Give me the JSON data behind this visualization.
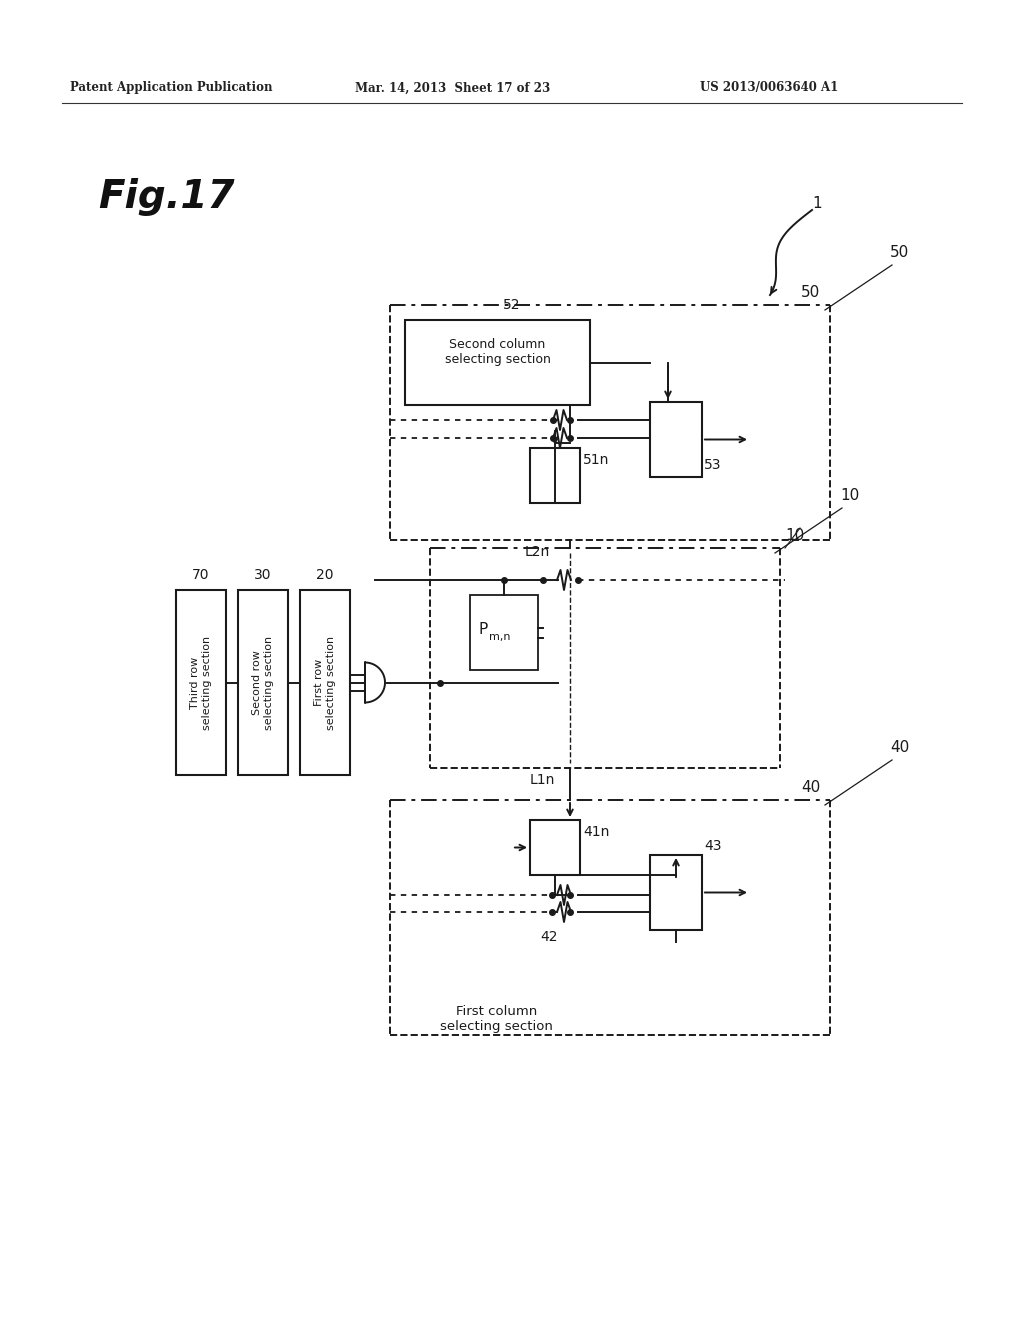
{
  "bg_color": "#ffffff",
  "line_color": "#1a1a1a",
  "title_text": "Fig.17",
  "header_left": "Patent Application Publication",
  "header_mid": "Mar. 14, 2013  Sheet 17 of 23",
  "header_right": "US 2013/0063640 A1",
  "label_1": "1",
  "label_10": "10",
  "label_20": "20",
  "label_30": "30",
  "label_40": "40",
  "label_41n": "41n",
  "label_42": "42",
  "label_43": "43",
  "label_50": "50",
  "label_51n": "51n",
  "label_52": "52",
  "label_53": "53",
  "label_70": "70",
  "label_L1n": "L1n",
  "label_L2n": "L2n",
  "box20_text": "First row\nselecting section",
  "box30_text": "Second row\nselecting section",
  "box70_text": "Third row\nselecting section",
  "box52_text": "Second column\nselecting section",
  "box40_text": "First column\nselecting section"
}
